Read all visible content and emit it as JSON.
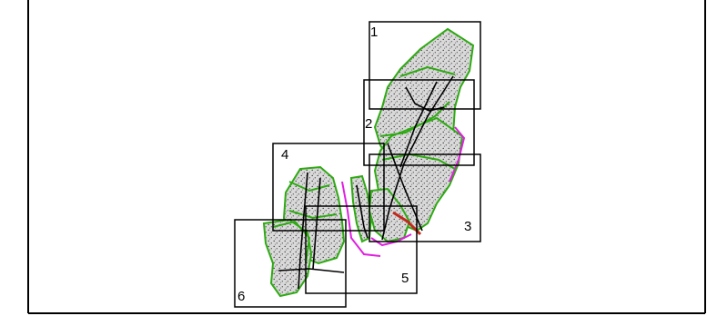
{
  "map": {
    "tiles": [
      {
        "label": "1"
      },
      {
        "label": "2"
      },
      {
        "label": "3"
      },
      {
        "label": "4"
      },
      {
        "label": "5"
      },
      {
        "label": "6"
      }
    ],
    "colors": {
      "parcel_fill": "#d9d9d9",
      "stipple": "#333333",
      "boundary_green": "#2eaa12",
      "boundary_magenta": "#e020e0",
      "road_black": "#000000",
      "highlight_red": "#c0281e",
      "tile_border": "#000000"
    }
  }
}
